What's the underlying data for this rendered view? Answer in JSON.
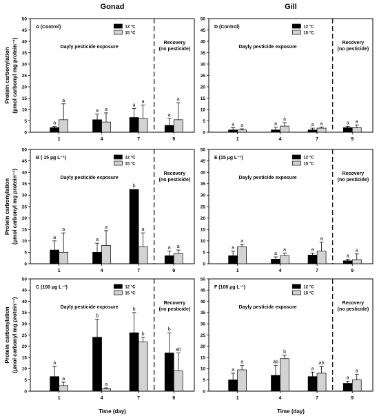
{
  "figure": {
    "left_title": "Gonad",
    "right_title": "Gill",
    "ylabel_line1": "Protein carbonylation",
    "ylabel_line2": "(µmol carbonyl mg protein⁻¹)",
    "xlabel": "Time (day)"
  },
  "chart_data": [
    {
      "type": "bar",
      "label": "A (Control)",
      "exposure_text": "Dayly pesticide exposure",
      "recovery_text": [
        "Recovery",
        "(no pesticide)"
      ],
      "categories": [
        "1",
        "4",
        "7",
        "9"
      ],
      "ylim": [
        0,
        50
      ],
      "yticks": [
        0,
        5,
        10,
        15,
        20,
        25,
        30,
        35,
        40,
        45,
        50
      ],
      "series": [
        {
          "name": "12 °C",
          "color": "#000000",
          "values": [
            2,
            5.5,
            6.5,
            3
          ],
          "errors": [
            0.6,
            2.5,
            4,
            3
          ],
          "letters": [
            "a",
            "a",
            "a",
            "a"
          ]
        },
        {
          "name": "15 °C",
          "color": "#d3d3d3",
          "values": [
            5.5,
            4.5,
            6,
            5.5
          ],
          "errors": [
            7,
            4,
            6,
            7.5
          ],
          "letters": [
            "a",
            "a",
            "a",
            "a"
          ]
        }
      ]
    },
    {
      "type": "bar",
      "label": "D (Control)",
      "exposure_text": "Dayly pesticide exposure",
      "recovery_text": [
        "Recovery",
        "(no pesticide)"
      ],
      "categories": [
        "1",
        "4",
        "7",
        "9"
      ],
      "ylim": [
        0,
        50
      ],
      "yticks": [
        0,
        5,
        10,
        15,
        20,
        25,
        30,
        35,
        40,
        45,
        50
      ],
      "series": [
        {
          "name": "12 °C",
          "color": "#000000",
          "values": [
            1,
            1,
            1,
            2
          ],
          "errors": [
            1,
            1.2,
            0.8,
            0.6
          ],
          "letters": [
            "a",
            "a",
            "a",
            "a"
          ]
        },
        {
          "name": "15 °C",
          "color": "#d3d3d3",
          "values": [
            1,
            2.7,
            1.8,
            2
          ],
          "errors": [
            0.5,
            1.5,
            0.5,
            1.2
          ],
          "letters": [
            "a",
            "a",
            "a",
            "a"
          ]
        }
      ]
    },
    {
      "type": "bar",
      "label": "B ( 15 µg L⁻¹)",
      "exposure_text": "Dayly pesticide exposure",
      "recovery_text": [
        "Recovery",
        "(no pesticide)"
      ],
      "categories": [
        "1",
        "4",
        "7",
        "9"
      ],
      "ylim": [
        0,
        50
      ],
      "yticks": [
        0,
        5,
        10,
        15,
        20,
        25,
        30,
        35,
        40,
        45,
        50
      ],
      "series": [
        {
          "name": "12 °C",
          "color": "#000000",
          "values": [
            6,
            5,
            32.5,
            3.5
          ],
          "errors": [
            4,
            4,
            0,
            2
          ],
          "letters": [
            "a",
            "a",
            "b",
            "a"
          ]
        },
        {
          "name": "15 °C",
          "color": "#d3d3d3",
          "values": [
            5,
            8,
            7.5,
            4.5
          ],
          "errors": [
            8.5,
            6.5,
            6,
            1.5
          ],
          "letters": [
            "a",
            "a",
            "a",
            "a"
          ]
        }
      ]
    },
    {
      "type": "bar",
      "label": "E (15 µg L⁻¹)",
      "exposure_text": "Dayly pesticide exposure",
      "recovery_text": [
        "Recovery",
        "(no pesticide)"
      ],
      "categories": [
        "1",
        "4",
        "7",
        "9"
      ],
      "ylim": [
        0,
        50
      ],
      "yticks": [
        0,
        5,
        10,
        15,
        20,
        25,
        30,
        35,
        40,
        45,
        50
      ],
      "series": [
        {
          "name": "12 °C",
          "color": "#000000",
          "values": [
            3.5,
            2,
            3.8,
            1.3
          ],
          "errors": [
            2,
            1,
            0.8,
            0.7
          ],
          "letters": [
            "a",
            "a",
            "a",
            "a"
          ]
        },
        {
          "name": "15 °C",
          "color": "#d3d3d3",
          "values": [
            7.5,
            3.5,
            5.5,
            1.8
          ],
          "errors": [
            1,
            1.2,
            4,
            2.5
          ],
          "letters": [
            "a",
            "a",
            "a",
            "a"
          ]
        }
      ]
    },
    {
      "type": "bar",
      "label": "C (100 µg L⁻¹)",
      "exposure_text": "Dayly pesticide exposure",
      "recovery_text": [
        "Recovery",
        "(no pesticide)"
      ],
      "categories": [
        "1",
        "4",
        "7",
        "9"
      ],
      "ylim": [
        0,
        50
      ],
      "yticks": [
        0,
        5,
        10,
        15,
        20,
        25,
        30,
        35,
        40,
        45,
        50
      ],
      "series": [
        {
          "name": "12 °C",
          "color": "#000000",
          "values": [
            6.5,
            24,
            26,
            17
          ],
          "errors": [
            4.5,
            8,
            9,
            9
          ],
          "letters": [
            "a",
            "b",
            "b",
            "b"
          ]
        },
        {
          "name": "15 °C",
          "color": "#d3d3d3",
          "values": [
            2.5,
            1,
            22,
            9
          ],
          "errors": [
            1.5,
            0.5,
            2,
            8
          ],
          "letters": [
            "a",
            "a",
            "b",
            "ab"
          ]
        }
      ]
    },
    {
      "type": "bar",
      "label": "F (100 µg L⁻¹)",
      "exposure_text": "Dayly pesticide exposure",
      "recovery_text": [
        "Recovery",
        "(no pesticide)"
      ],
      "categories": [
        "1",
        "4",
        "7",
        "9"
      ],
      "ylim": [
        0,
        50
      ],
      "yticks": [
        0,
        5,
        10,
        15,
        20,
        25,
        30,
        35,
        40,
        45,
        50
      ],
      "series": [
        {
          "name": "12 °C",
          "color": "#000000",
          "values": [
            5,
            7,
            6.5,
            3.5
          ],
          "errors": [
            3,
            4.5,
            2,
            1
          ],
          "letters": [
            "a",
            "ab",
            "a",
            "a"
          ]
        },
        {
          "name": "15 °C",
          "color": "#d3d3d3",
          "values": [
            9.5,
            14.5,
            8,
            5
          ],
          "errors": [
            2,
            1.5,
            3,
            2.5
          ],
          "letters": [
            "a",
            "b",
            "ab",
            "a"
          ]
        }
      ]
    }
  ]
}
